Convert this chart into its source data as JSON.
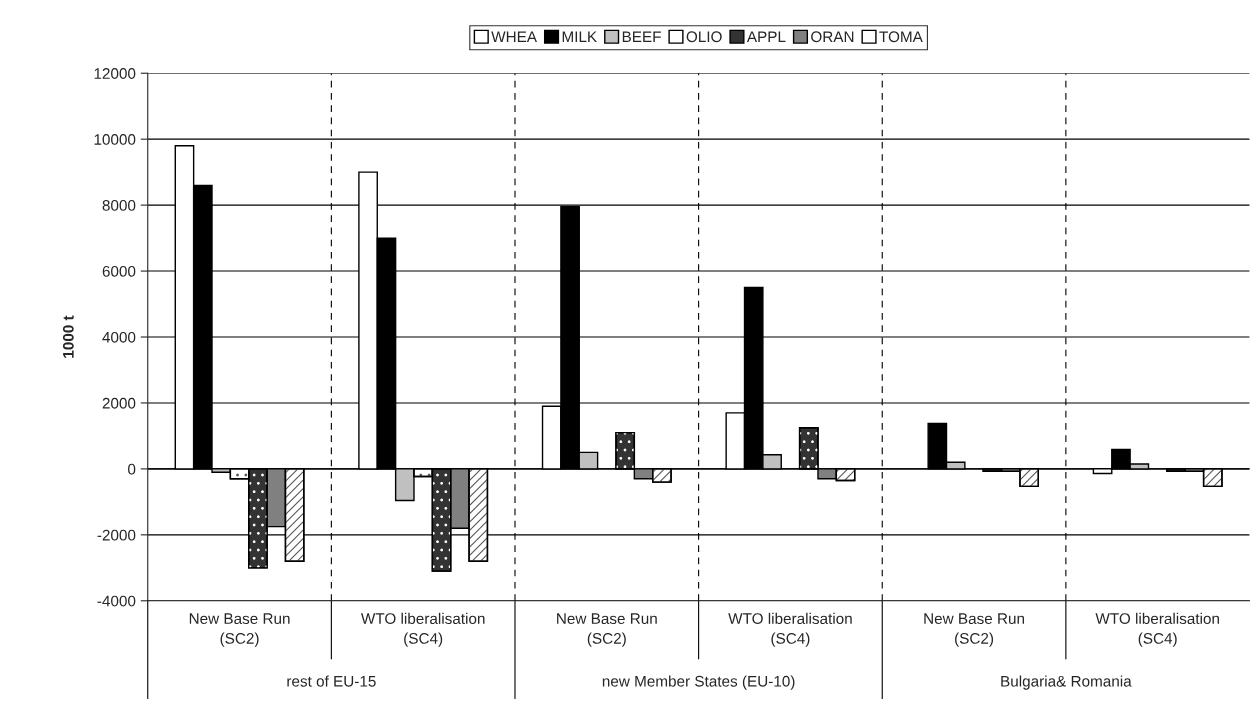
{
  "chart_data": {
    "type": "bar",
    "ylabel": "1000 t",
    "categories": [
      "New Base Run\n(SC2)",
      "WTO liberalisation\n(SC4)",
      "New Base Run\n(SC2)",
      "WTO liberalisation\n(SC4)",
      "New Base Run\n(SC2)",
      "WTO liberalisation\n(SC4)"
    ],
    "annotations": [
      "rest of EU-15",
      "new Member States (EU-10)",
      "Bulgaria& Romania"
    ],
    "series": [
      {
        "name": "WHEA",
        "color": "#ffffff",
        "values": [
          9800,
          9000,
          1900,
          1700,
          0,
          -140
        ]
      },
      {
        "name": "MILK",
        "color": "#000000",
        "values": [
          8600,
          7000,
          7950,
          5500,
          1380,
          590
        ]
      },
      {
        "name": "BEEF",
        "color": "#c0c0c0",
        "values": [
          -100,
          -960,
          500,
          430,
          200,
          150
        ]
      },
      {
        "name": "OLIO",
        "color": "#ffffff",
        "values": [
          -300,
          -230,
          0,
          0,
          0,
          0
        ]
      },
      {
        "name": "APPL",
        "color": "#333333",
        "values": [
          -3000,
          -3100,
          1100,
          1250,
          -70,
          -70
        ]
      },
      {
        "name": "ORAN",
        "color": "#808080",
        "values": [
          -1750,
          -1800,
          -300,
          -300,
          -70,
          -70
        ]
      },
      {
        "name": "TOMA",
        "color": "#ffffff",
        "values": [
          -2800,
          -2800,
          -400,
          -350,
          -530,
          -530
        ]
      }
    ],
    "ylim": [
      -4000,
      12000
    ],
    "yticks": [
      -4000,
      -2000,
      0,
      2000,
      4000,
      6000,
      8000,
      10000,
      12000
    ],
    "grid": true,
    "legend": "top"
  }
}
